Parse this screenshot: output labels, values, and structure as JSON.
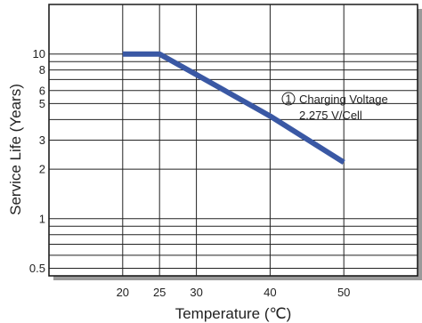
{
  "chart_data": {
    "type": "line",
    "title": "",
    "xlabel": "Temperature (℃)",
    "ylabel": "Service Life (Years)",
    "x_scale": "linear",
    "y_scale": "log",
    "xlim": [
      10,
      60
    ],
    "ylim": [
      0.45,
      20
    ],
    "x_ticks": [
      20,
      25,
      30,
      40,
      50
    ],
    "y_ticks": [
      0.5,
      1,
      2,
      3,
      5,
      6,
      8,
      10
    ],
    "grid": true,
    "series": [
      {
        "name": "Charging Voltage 2.275 V/Cell",
        "color": "#3a58a4",
        "x": [
          20,
          25,
          30,
          40,
          50
        ],
        "y": [
          10,
          10,
          7.5,
          4.2,
          2.2
        ]
      }
    ],
    "annotation": {
      "marker": "1",
      "line1": "Charging Voltage",
      "line2": "2.275 V/Cell"
    }
  }
}
